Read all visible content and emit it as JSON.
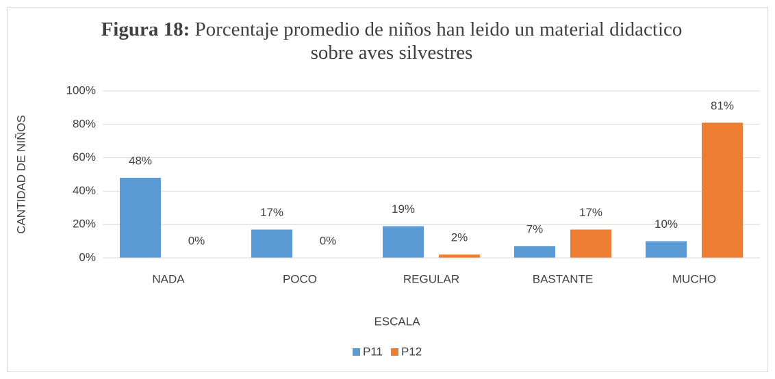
{
  "chart_data": {
    "type": "bar",
    "title_prefix": "Figura 18:",
    "title": "Porcentaje promedio de niños han leido un material didactico sobre aves silvestres",
    "x_label": "ESCALA",
    "y_label": "CANTIDAD DE NIÑOS",
    "categories": [
      "NADA",
      "POCO",
      "REGULAR",
      "BASTANTE",
      "MUCHO"
    ],
    "series": [
      {
        "name": "P11",
        "color": "#5b9bd5",
        "values": [
          48,
          17,
          19,
          7,
          10
        ],
        "value_labels": [
          "48%",
          "17%",
          "19%",
          "7%",
          "10%"
        ]
      },
      {
        "name": "P12",
        "color": "#ed7d31",
        "values": [
          0,
          0,
          2,
          17,
          81
        ],
        "value_labels": [
          "0%",
          "0%",
          "2%",
          "17%",
          "81%"
        ]
      }
    ],
    "ylim": [
      0,
      100
    ],
    "yticks": [
      {
        "value": 0,
        "label": "0%"
      },
      {
        "value": 20,
        "label": "20%"
      },
      {
        "value": 40,
        "label": "40%"
      },
      {
        "value": 60,
        "label": "60%"
      },
      {
        "value": 80,
        "label": "80%"
      },
      {
        "value": 100,
        "label": "100%"
      }
    ],
    "grid": true,
    "legend": "bottom"
  }
}
